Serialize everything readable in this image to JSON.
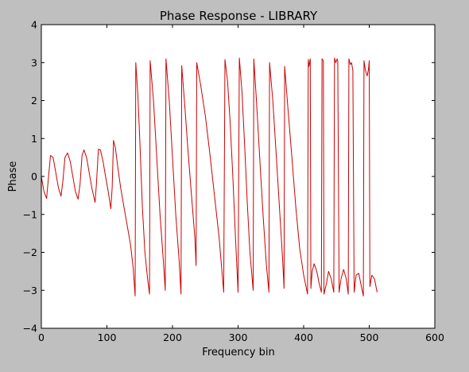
{
  "chart_data": {
    "type": "line",
    "title": "Phase Response - LIBRARY",
    "xlabel": "Frequency bin",
    "ylabel": "Phase",
    "xlim": [
      0,
      600
    ],
    "ylim": [
      -4,
      4
    ],
    "xticks": [
      0,
      100,
      200,
      300,
      400,
      500,
      600
    ],
    "yticks": [
      -4,
      -3,
      -2,
      -1,
      0,
      1,
      2,
      3,
      4
    ],
    "xtick_labels": [
      "0",
      "100",
      "200",
      "300",
      "400",
      "500",
      "600"
    ],
    "ytick_labels": [
      "−4",
      "−3",
      "−2",
      "−1",
      "0",
      "1",
      "2",
      "3",
      "4"
    ],
    "grid": false,
    "legend": "none",
    "series": [
      {
        "color": "#cc0000",
        "points": [
          [
            0,
            0.0
          ],
          [
            4,
            -0.4
          ],
          [
            8,
            -0.58
          ],
          [
            11,
            0.0
          ],
          [
            14,
            0.55
          ],
          [
            18,
            0.5
          ],
          [
            22,
            0.1
          ],
          [
            26,
            -0.3
          ],
          [
            30,
            -0.52
          ],
          [
            33,
            -0.1
          ],
          [
            36,
            0.5
          ],
          [
            40,
            0.62
          ],
          [
            44,
            0.4
          ],
          [
            48,
            0.0
          ],
          [
            52,
            -0.4
          ],
          [
            56,
            -0.6
          ],
          [
            59,
            -0.2
          ],
          [
            62,
            0.55
          ],
          [
            65,
            0.7
          ],
          [
            69,
            0.5
          ],
          [
            73,
            0.1
          ],
          [
            77,
            -0.3
          ],
          [
            82,
            -0.68
          ],
          [
            84,
            -0.2
          ],
          [
            87,
            0.72
          ],
          [
            90,
            0.7
          ],
          [
            94,
            0.4
          ],
          [
            98,
            0.0
          ],
          [
            102,
            -0.4
          ],
          [
            106,
            -0.85
          ],
          [
            108,
            -0.3
          ],
          [
            110,
            0.95
          ],
          [
            113,
            0.75
          ],
          [
            117,
            0.2
          ],
          [
            121,
            -0.3
          ],
          [
            126,
            -0.8
          ],
          [
            131,
            -1.3
          ],
          [
            136,
            -1.8
          ],
          [
            140,
            -2.4
          ],
          [
            143,
            -3.15
          ],
          [
            144,
            3.0
          ],
          [
            147,
            2.2
          ],
          [
            150,
            1.0
          ],
          [
            154,
            -0.8
          ],
          [
            158,
            -2.0
          ],
          [
            162,
            -2.7
          ],
          [
            165,
            -3.1
          ],
          [
            166,
            3.05
          ],
          [
            171,
            2.0
          ],
          [
            176,
            0.5
          ],
          [
            181,
            -1.0
          ],
          [
            186,
            -2.2
          ],
          [
            189,
            -3.0
          ],
          [
            190,
            3.1
          ],
          [
            195,
            2.0
          ],
          [
            200,
            0.5
          ],
          [
            205,
            -1.0
          ],
          [
            210,
            -2.2
          ],
          [
            213,
            -3.1
          ],
          [
            214,
            2.92
          ],
          [
            219,
            1.8
          ],
          [
            224,
            0.6
          ],
          [
            229,
            -0.5
          ],
          [
            234,
            -1.6
          ],
          [
            236,
            -2.35
          ],
          [
            237,
            3.0
          ],
          [
            243,
            2.4
          ],
          [
            250,
            1.6
          ],
          [
            257,
            0.6
          ],
          [
            264,
            -0.5
          ],
          [
            271,
            -1.6
          ],
          [
            278,
            -3.05
          ],
          [
            280,
            3.08
          ],
          [
            284,
            2.5
          ],
          [
            288,
            1.4
          ],
          [
            292,
            0.0
          ],
          [
            296,
            -1.6
          ],
          [
            300,
            -3.05
          ],
          [
            302,
            3.12
          ],
          [
            306,
            2.2
          ],
          [
            310,
            0.8
          ],
          [
            314,
            -0.7
          ],
          [
            318,
            -2.0
          ],
          [
            323,
            -3.0
          ],
          [
            324,
            3.1
          ],
          [
            328,
            2.0
          ],
          [
            333,
            0.5
          ],
          [
            338,
            -1.0
          ],
          [
            343,
            -2.3
          ],
          [
            347,
            -3.05
          ],
          [
            348,
            3.0
          ],
          [
            353,
            2.0
          ],
          [
            358,
            0.6
          ],
          [
            363,
            -0.8
          ],
          [
            368,
            -2.2
          ],
          [
            370,
            -2.95
          ],
          [
            371,
            2.9
          ],
          [
            376,
            1.8
          ],
          [
            382,
            0.5
          ],
          [
            388,
            -0.8
          ],
          [
            394,
            -1.9
          ],
          [
            400,
            -2.6
          ],
          [
            406,
            -3.1
          ],
          [
            407,
            3.08
          ],
          [
            408,
            2.9
          ],
          [
            410,
            3.1
          ],
          [
            411,
            -2.95
          ],
          [
            413,
            -2.5
          ],
          [
            416,
            -2.3
          ],
          [
            420,
            -2.5
          ],
          [
            424,
            -2.85
          ],
          [
            427,
            -3.05
          ],
          [
            428,
            3.1
          ],
          [
            430,
            3.05
          ],
          [
            431,
            -3.1
          ],
          [
            435,
            -2.8
          ],
          [
            438,
            -2.5
          ],
          [
            442,
            -2.7
          ],
          [
            446,
            -3.05
          ],
          [
            447,
            3.12
          ],
          [
            449,
            3.0
          ],
          [
            451,
            3.1
          ],
          [
            452,
            3.05
          ],
          [
            454,
            -3.05
          ],
          [
            457,
            -2.7
          ],
          [
            461,
            -2.45
          ],
          [
            465,
            -2.7
          ],
          [
            468,
            -3.1
          ],
          [
            469,
            3.1
          ],
          [
            471,
            2.95
          ],
          [
            473,
            3.0
          ],
          [
            475,
            2.8
          ],
          [
            477,
            -3.05
          ],
          [
            480,
            -2.6
          ],
          [
            484,
            -2.55
          ],
          [
            488,
            -2.9
          ],
          [
            491,
            -3.15
          ],
          [
            492,
            3.05
          ],
          [
            494,
            2.8
          ],
          [
            497,
            2.65
          ],
          [
            499,
            2.85
          ],
          [
            500,
            3.05
          ],
          [
            501,
            -2.9
          ],
          [
            504,
            -2.6
          ],
          [
            508,
            -2.7
          ],
          [
            512,
            -3.05
          ]
        ]
      }
    ]
  }
}
